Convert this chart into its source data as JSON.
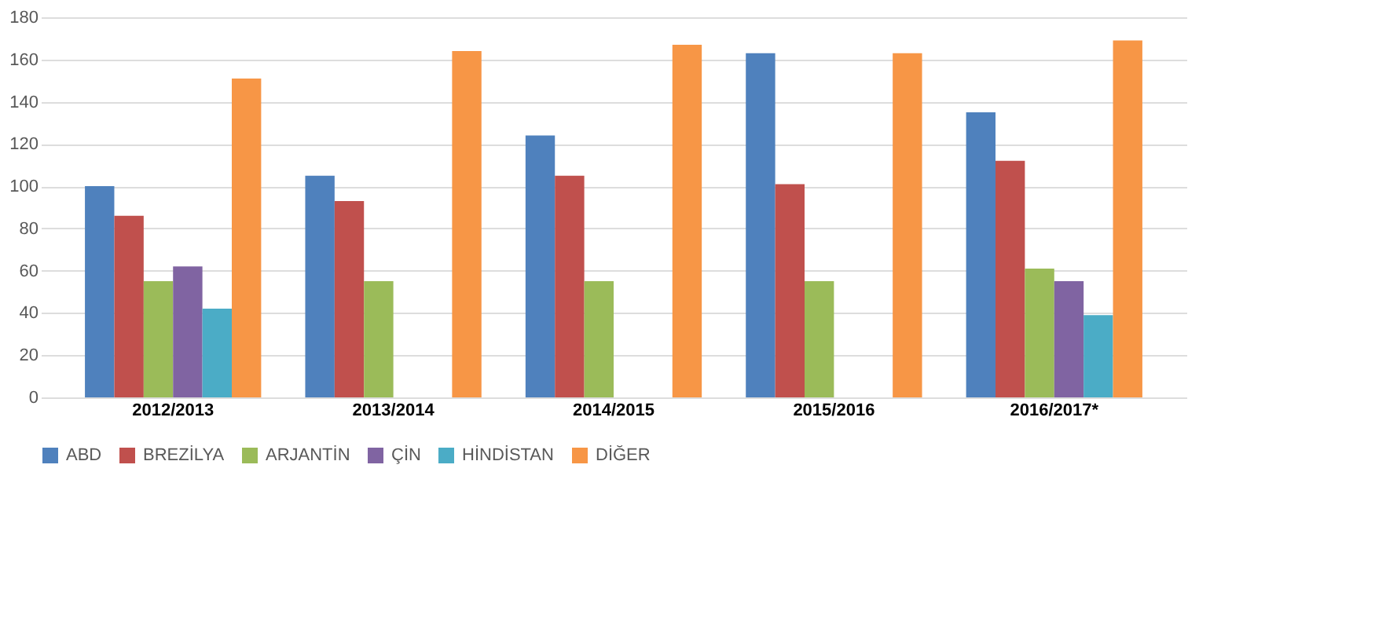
{
  "chart_data": {
    "type": "bar",
    "categories": [
      "2012/2013",
      "2013/2014",
      "2014/2015",
      "2015/2016",
      "2016/2017*"
    ],
    "series": [
      {
        "name": "ABD",
        "color": "#4f81bd",
        "values": [
          100,
          105,
          124,
          163,
          135
        ]
      },
      {
        "name": "BREZİLYA",
        "color": "#c0504d",
        "values": [
          86,
          93,
          105,
          101,
          112
        ]
      },
      {
        "name": "ARJANTİN",
        "color": "#9bbb59",
        "values": [
          55,
          55,
          55,
          55,
          61
        ]
      },
      {
        "name": "ÇİN",
        "color": "#8064a2",
        "values": [
          62,
          null,
          null,
          null,
          55
        ]
      },
      {
        "name": "HİNDİSTAN",
        "color": "#4bacc6",
        "values": [
          42,
          null,
          null,
          null,
          39
        ]
      },
      {
        "name": "DİĞER",
        "color": "#f79646",
        "values": [
          151,
          164,
          167,
          163,
          169
        ]
      }
    ],
    "ylim": [
      0,
      180
    ],
    "yticks": [
      0,
      20,
      40,
      60,
      80,
      100,
      120,
      140,
      160,
      180
    ],
    "grid": "y",
    "legend": "bottom"
  }
}
